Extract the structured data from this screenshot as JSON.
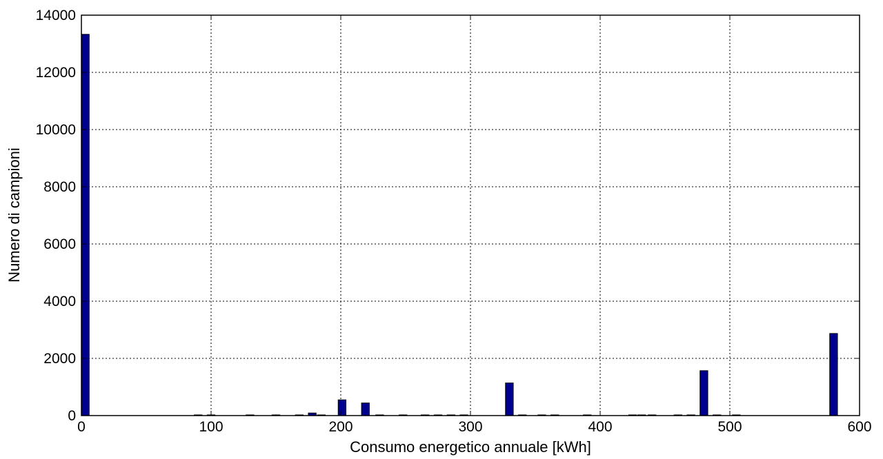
{
  "chart_data": {
    "type": "bar",
    "title": "",
    "xlabel": "Consumo energetico annuale [kWh]",
    "ylabel": "Numero di campioni",
    "xlim": [
      0,
      600
    ],
    "ylim": [
      0,
      14000
    ],
    "xticks": [
      0,
      100,
      200,
      300,
      400,
      500,
      600
    ],
    "yticks": [
      0,
      2000,
      4000,
      6000,
      8000,
      10000,
      12000,
      14000
    ],
    "grid": true,
    "bar_width": 6,
    "bars": [
      {
        "x": 3,
        "y": 13330
      },
      {
        "x": 90,
        "y": 15
      },
      {
        "x": 100,
        "y": 12
      },
      {
        "x": 130,
        "y": 10
      },
      {
        "x": 150,
        "y": 10
      },
      {
        "x": 168,
        "y": 12
      },
      {
        "x": 178,
        "y": 90
      },
      {
        "x": 185,
        "y": 20
      },
      {
        "x": 201,
        "y": 550
      },
      {
        "x": 219,
        "y": 440
      },
      {
        "x": 230,
        "y": 15
      },
      {
        "x": 248,
        "y": 12
      },
      {
        "x": 265,
        "y": 10
      },
      {
        "x": 275,
        "y": 10
      },
      {
        "x": 285,
        "y": 10
      },
      {
        "x": 295,
        "y": 10
      },
      {
        "x": 330,
        "y": 1140
      },
      {
        "x": 340,
        "y": 15
      },
      {
        "x": 355,
        "y": 12
      },
      {
        "x": 365,
        "y": 12
      },
      {
        "x": 390,
        "y": 10
      },
      {
        "x": 425,
        "y": 10
      },
      {
        "x": 432,
        "y": 10
      },
      {
        "x": 440,
        "y": 10
      },
      {
        "x": 460,
        "y": 10
      },
      {
        "x": 470,
        "y": 10
      },
      {
        "x": 480,
        "y": 1570
      },
      {
        "x": 490,
        "y": 15
      },
      {
        "x": 505,
        "y": 12
      },
      {
        "x": 580,
        "y": 2870
      }
    ]
  }
}
